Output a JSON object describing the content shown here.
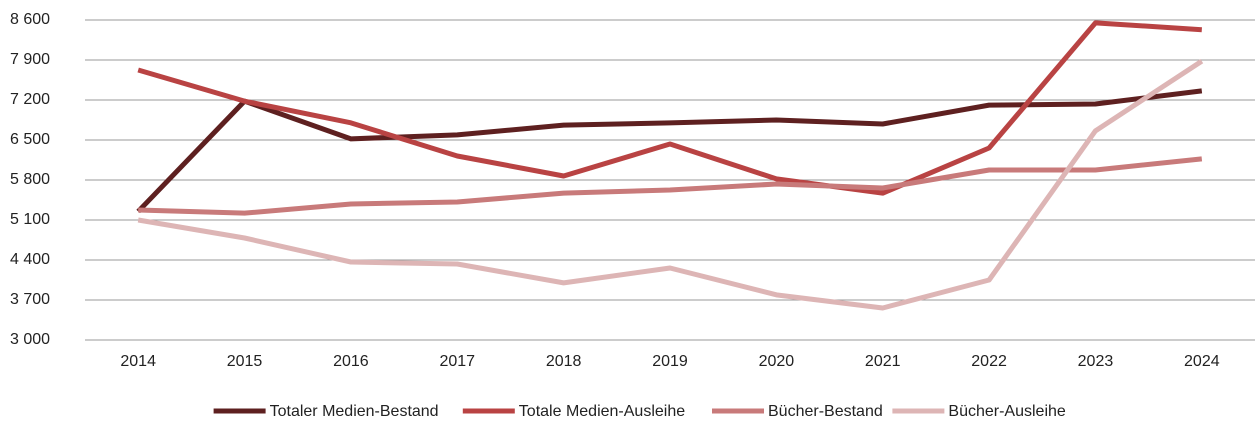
{
  "chart_data": {
    "type": "line",
    "categories": [
      "2014",
      "2015",
      "2016",
      "2017",
      "2018",
      "2019",
      "2020",
      "2021",
      "2022",
      "2023",
      "2024"
    ],
    "series": [
      {
        "name": "Totaler Medien-Bestand",
        "color": "#5e2020",
        "values": [
          5250,
          7180,
          6520,
          6590,
          6760,
          6800,
          6850,
          6780,
          7110,
          7130,
          7360
        ]
      },
      {
        "name": "Totale Medien-Ausleihe",
        "color": "#b94343",
        "values": [
          7725,
          7180,
          6800,
          6220,
          5870,
          6430,
          5820,
          5570,
          6360,
          8550,
          8430
        ]
      },
      {
        "name": "Bücher-Bestand",
        "color": "#c87a7a",
        "values": [
          5275,
          5220,
          5380,
          5415,
          5570,
          5625,
          5730,
          5660,
          5975,
          5975,
          6170
        ]
      },
      {
        "name": "Bücher-Ausleihe",
        "color": "#ddb5b5",
        "values": [
          5100,
          4785,
          4365,
          4330,
          4000,
          4260,
          3790,
          3560,
          4050,
          6660,
          7880
        ]
      }
    ],
    "ylim": [
      3000,
      8600
    ],
    "yticks": [
      {
        "value": 3000,
        "label": "3 000"
      },
      {
        "value": 3700,
        "label": "3 700"
      },
      {
        "value": 4400,
        "label": "4 400"
      },
      {
        "value": 5100,
        "label": "5 100"
      },
      {
        "value": 5800,
        "label": "5 800"
      },
      {
        "value": 6500,
        "label": "6 500"
      },
      {
        "value": 7200,
        "label": "7 200"
      },
      {
        "value": 7900,
        "label": "7 900"
      },
      {
        "value": 8600,
        "label": "8 600"
      }
    ],
    "grid": true
  }
}
